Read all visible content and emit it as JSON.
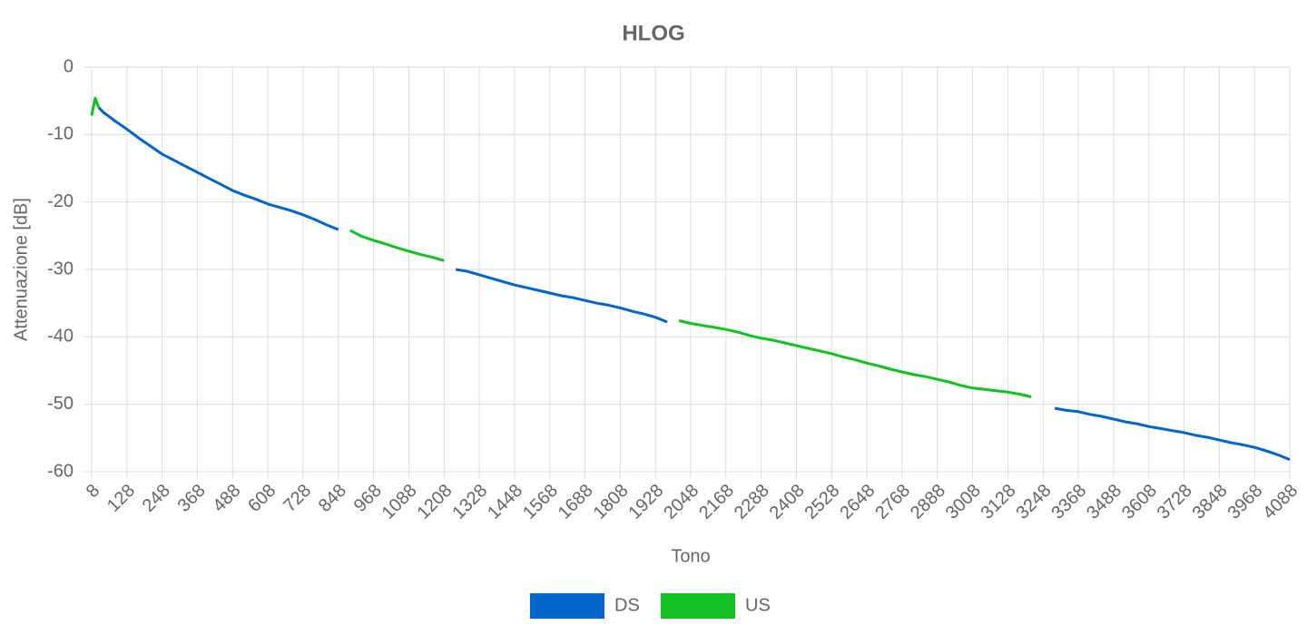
{
  "chart_data": {
    "type": "line",
    "title": "HLOG",
    "x_label": "Tono",
    "y_label": "Attenuazione [dB]",
    "x": [
      8,
      20,
      32,
      48,
      88,
      128,
      168,
      208,
      248,
      288,
      328,
      368,
      408,
      448,
      488,
      528,
      568,
      608,
      648,
      688,
      728,
      768,
      808,
      848,
      888,
      928,
      968,
      1008,
      1048,
      1088,
      1128,
      1168,
      1208,
      1248,
      1288,
      1328,
      1368,
      1408,
      1448,
      1488,
      1528,
      1568,
      1608,
      1648,
      1688,
      1728,
      1768,
      1808,
      1848,
      1888,
      1928,
      1968,
      2008,
      2048,
      2088,
      2128,
      2168,
      2208,
      2248,
      2288,
      2328,
      2368,
      2408,
      2448,
      2488,
      2528,
      2568,
      2608,
      2648,
      2688,
      2728,
      2768,
      2808,
      2848,
      2888,
      2928,
      2968,
      3008,
      3048,
      3088,
      3128,
      3168,
      3208,
      3248,
      3288,
      3328,
      3368,
      3408,
      3448,
      3488,
      3528,
      3568,
      3608,
      3648,
      3688,
      3728,
      3768,
      3808,
      3848,
      3888,
      3928,
      3968,
      4008,
      4048,
      4088
    ],
    "series": [
      {
        "name": "DS",
        "color": "#0066cc",
        "values": [
          null,
          null,
          -6.0,
          -6.7,
          -8.0,
          -9.2,
          -10.5,
          -11.7,
          -12.9,
          -13.8,
          -14.7,
          -15.6,
          -16.5,
          -17.4,
          -18.3,
          -19.0,
          -19.6,
          -20.3,
          -20.8,
          -21.3,
          -21.9,
          -22.6,
          -23.4,
          -24.1,
          null,
          null,
          null,
          null,
          null,
          null,
          null,
          null,
          null,
          -30.0,
          -30.3,
          -30.8,
          -31.3,
          -31.8,
          -32.3,
          -32.7,
          -33.1,
          -33.5,
          -33.9,
          -34.2,
          -34.6,
          -35.0,
          -35.3,
          -35.7,
          -36.2,
          -36.6,
          -37.1,
          -37.8,
          null,
          null,
          null,
          null,
          null,
          null,
          null,
          null,
          null,
          null,
          null,
          null,
          null,
          null,
          null,
          null,
          null,
          null,
          null,
          null,
          null,
          null,
          null,
          null,
          null,
          null,
          null,
          null,
          null,
          null,
          null,
          null,
          -50.6,
          -50.9,
          -51.1,
          -51.5,
          -51.8,
          -52.2,
          -52.6,
          -52.9,
          -53.3,
          -53.6,
          -53.9,
          -54.2,
          -54.6,
          -54.9,
          -55.3,
          -55.7,
          -56.0,
          -56.4,
          -56.9,
          -57.5,
          -58.2
        ]
      },
      {
        "name": "US",
        "color": "#11c222",
        "values": [
          -7.2,
          -4.6,
          -6.0,
          null,
          null,
          null,
          null,
          null,
          null,
          null,
          null,
          null,
          null,
          null,
          null,
          null,
          null,
          null,
          null,
          null,
          null,
          null,
          null,
          null,
          -24.2,
          -25.1,
          -25.7,
          -26.2,
          -26.8,
          -27.3,
          -27.8,
          -28.2,
          -28.7,
          null,
          null,
          null,
          null,
          null,
          null,
          null,
          null,
          null,
          null,
          null,
          null,
          null,
          null,
          null,
          null,
          null,
          null,
          null,
          -37.6,
          -38.0,
          -38.3,
          -38.6,
          -38.9,
          -39.3,
          -39.8,
          -40.2,
          -40.5,
          -40.9,
          -41.3,
          -41.7,
          -42.1,
          -42.5,
          -43.0,
          -43.4,
          -43.9,
          -44.3,
          -44.8,
          -45.2,
          -45.6,
          -45.9,
          -46.3,
          -46.7,
          -47.2,
          -47.6,
          -47.8,
          -48.0,
          -48.2,
          -48.5,
          -48.9,
          null,
          null,
          null,
          null,
          null,
          null,
          null,
          null,
          null,
          null,
          null,
          null,
          null,
          null,
          null,
          null,
          null,
          null,
          null,
          null,
          null,
          null
        ]
      }
    ],
    "xlim": [
      8,
      4088
    ],
    "xticks": [
      8,
      128,
      248,
      368,
      488,
      608,
      728,
      848,
      968,
      1088,
      1208,
      1328,
      1448,
      1568,
      1688,
      1808,
      1928,
      2048,
      2168,
      2288,
      2408,
      2528,
      2648,
      2768,
      2888,
      3008,
      3128,
      3248,
      3368,
      3488,
      3608,
      3728,
      3848,
      3968,
      4088
    ],
    "ylim": [
      -60,
      0
    ],
    "yticks": [
      -60,
      -50,
      -40,
      -30,
      -20,
      -10,
      0
    ],
    "grid": true,
    "legend": "bottom"
  }
}
